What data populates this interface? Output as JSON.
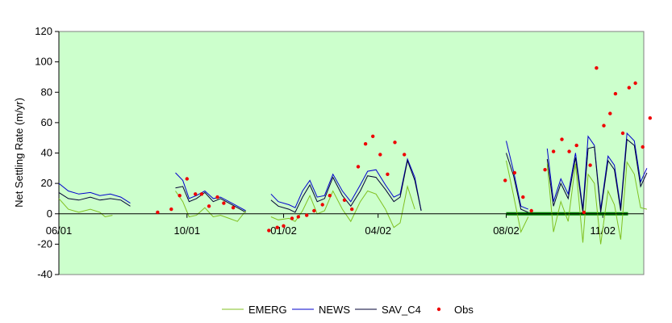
{
  "chart_data": {
    "type": "line",
    "title": "",
    "xlabel": "",
    "ylabel": "Net Settling Rate (m/yr)",
    "ylim": [
      -40,
      120
    ],
    "yticks": [
      -40,
      -20,
      0,
      20,
      40,
      60,
      80,
      100,
      120
    ],
    "xlim": [
      "2001-06-01",
      "2002-12-10"
    ],
    "xticks": [
      {
        "date": "2001-06-01",
        "label": "06/01"
      },
      {
        "date": "2001-10-01",
        "label": "10/01"
      },
      {
        "date": "2002-01-01",
        "label": "01/02"
      },
      {
        "date": "2002-04-01",
        "label": "04/02"
      },
      {
        "date": "2002-08-01",
        "label": "08/02"
      },
      {
        "date": "2002-11-01",
        "label": "11/02"
      }
    ],
    "grid": false,
    "legend_position": "bottom",
    "colors": {
      "plot_bg": "#ccffcc",
      "EMERG": "#80c020",
      "NEWS": "#0000cc",
      "SAV_C4": "#000033",
      "Obs": "#ee0000",
      "bar": "#008000"
    },
    "annotations": [
      {
        "type": "horizontal-bar",
        "x_start": "2002-08-01",
        "x_end": "2002-11-25",
        "y": 0
      }
    ],
    "series": [
      {
        "name": "NEWS",
        "segments": [
          [
            [
              "2001-06-01",
              20
            ],
            [
              "2001-06-10",
              15
            ],
            [
              "2001-06-20",
              13
            ],
            [
              "2001-07-01",
              14
            ],
            [
              "2001-07-10",
              12
            ],
            [
              "2001-07-20",
              13
            ],
            [
              "2001-07-30",
              11
            ],
            [
              "2001-08-08",
              7
            ]
          ],
          [
            [
              "2001-09-20",
              27
            ],
            [
              "2001-09-27",
              22
            ],
            [
              "2001-10-03",
              10
            ],
            [
              "2001-10-10",
              12
            ],
            [
              "2001-10-18",
              15
            ],
            [
              "2001-10-26",
              10
            ],
            [
              "2001-11-02",
              11
            ],
            [
              "2001-11-10",
              8
            ],
            [
              "2001-11-18",
              5
            ],
            [
              "2001-11-26",
              2
            ]
          ],
          [
            [
              "2001-12-20",
              13
            ],
            [
              "2001-12-27",
              8
            ],
            [
              "2002-01-06",
              6
            ],
            [
              "2002-01-12",
              4
            ],
            [
              "2002-01-19",
              15
            ],
            [
              "2002-01-26",
              22
            ],
            [
              "2002-02-02",
              11
            ],
            [
              "2002-02-09",
              12
            ],
            [
              "2002-02-17",
              26
            ],
            [
              "2002-02-26",
              15
            ],
            [
              "2002-03-06",
              8
            ],
            [
              "2002-03-15",
              19
            ],
            [
              "2002-03-22",
              28
            ],
            [
              "2002-03-30",
              29
            ],
            [
              "2002-04-08",
              19
            ],
            [
              "2002-04-16",
              11
            ],
            [
              "2002-04-22",
              13
            ],
            [
              "2002-04-29",
              36
            ],
            [
              "2002-05-06",
              24
            ],
            [
              "2002-05-12",
              2
            ]
          ],
          [
            [
              "2002-08-01",
              48
            ],
            [
              "2002-08-08",
              28
            ],
            [
              "2002-08-15",
              5
            ],
            [
              "2002-08-22",
              3
            ]
          ],
          [
            [
              "2002-09-09",
              43
            ],
            [
              "2002-09-15",
              8
            ],
            [
              "2002-09-22",
              23
            ],
            [
              "2002-09-29",
              13
            ],
            [
              "2002-10-06",
              40
            ],
            [
              "2002-10-13",
              3
            ],
            [
              "2002-10-18",
              51
            ],
            [
              "2002-10-24",
              45
            ],
            [
              "2002-10-30",
              3
            ],
            [
              "2002-11-06",
              38
            ],
            [
              "2002-11-12",
              32
            ],
            [
              "2002-11-18",
              4
            ],
            [
              "2002-11-24",
              53
            ],
            [
              "2002-12-01",
              48
            ],
            [
              "2002-12-07",
              21
            ],
            [
              "2002-12-13",
              30
            ]
          ]
        ]
      },
      {
        "name": "SAV_C4",
        "segments": [
          [
            [
              "2001-06-01",
              14
            ],
            [
              "2001-06-10",
              10
            ],
            [
              "2001-06-20",
              9
            ],
            [
              "2001-07-01",
              11
            ],
            [
              "2001-07-10",
              9
            ],
            [
              "2001-07-20",
              10
            ],
            [
              "2001-07-30",
              9
            ],
            [
              "2001-08-08",
              5
            ]
          ],
          [
            [
              "2001-09-20",
              17
            ],
            [
              "2001-09-27",
              18
            ],
            [
              "2001-10-03",
              8
            ],
            [
              "2001-10-10",
              10
            ],
            [
              "2001-10-18",
              14
            ],
            [
              "2001-10-26",
              8
            ],
            [
              "2001-11-02",
              10
            ],
            [
              "2001-11-10",
              7
            ],
            [
              "2001-11-18",
              4
            ],
            [
              "2001-11-26",
              1
            ]
          ],
          [
            [
              "2001-12-20",
              9
            ],
            [
              "2001-12-27",
              5
            ],
            [
              "2002-01-06",
              3
            ],
            [
              "2002-01-12",
              1
            ],
            [
              "2002-01-19",
              11
            ],
            [
              "2002-01-26",
              19
            ],
            [
              "2002-02-02",
              8
            ],
            [
              "2002-02-09",
              10
            ],
            [
              "2002-02-17",
              24
            ],
            [
              "2002-02-26",
              12
            ],
            [
              "2002-03-06",
              5
            ],
            [
              "2002-03-15",
              15
            ],
            [
              "2002-03-22",
              25
            ],
            [
              "2002-03-30",
              24
            ],
            [
              "2002-04-08",
              16
            ],
            [
              "2002-04-16",
              8
            ],
            [
              "2002-04-22",
              11
            ],
            [
              "2002-04-29",
              35
            ],
            [
              "2002-05-06",
              22
            ],
            [
              "2002-05-12",
              2
            ]
          ],
          [
            [
              "2002-08-01",
              40
            ],
            [
              "2002-08-08",
              25
            ],
            [
              "2002-08-15",
              3
            ],
            [
              "2002-08-22",
              1
            ]
          ],
          [
            [
              "2002-09-09",
              36
            ],
            [
              "2002-09-15",
              5
            ],
            [
              "2002-09-22",
              20
            ],
            [
              "2002-09-29",
              10
            ],
            [
              "2002-10-06",
              37
            ],
            [
              "2002-10-13",
              1
            ],
            [
              "2002-10-18",
              43
            ],
            [
              "2002-10-24",
              44
            ],
            [
              "2002-10-30",
              1
            ],
            [
              "2002-11-06",
              35
            ],
            [
              "2002-11-12",
              29
            ],
            [
              "2002-11-18",
              2
            ],
            [
              "2002-11-24",
              49
            ],
            [
              "2002-12-01",
              45
            ],
            [
              "2002-12-07",
              18
            ],
            [
              "2002-12-13",
              27
            ]
          ]
        ]
      },
      {
        "name": "EMERG",
        "segments": [
          [
            [
              "2001-06-01",
              10
            ],
            [
              "2001-06-10",
              3
            ],
            [
              "2001-06-20",
              1
            ],
            [
              "2001-07-01",
              3
            ],
            [
              "2001-07-10",
              1
            ],
            [
              "2001-07-15",
              -2
            ],
            [
              "2001-07-22",
              -1
            ]
          ],
          [
            [
              "2001-09-20",
              15
            ],
            [
              "2001-09-27",
              8
            ],
            [
              "2001-10-03",
              -2
            ],
            [
              "2001-10-10",
              -1
            ],
            [
              "2001-10-18",
              4
            ],
            [
              "2001-10-26",
              -2
            ],
            [
              "2001-11-02",
              -1
            ],
            [
              "2001-11-10",
              -3
            ],
            [
              "2001-11-18",
              -5
            ],
            [
              "2001-11-26",
              2
            ]
          ],
          [
            [
              "2001-12-20",
              -2
            ],
            [
              "2001-12-27",
              -4
            ],
            [
              "2002-01-06",
              -3
            ],
            [
              "2002-01-12",
              -5
            ],
            [
              "2002-01-19",
              2
            ],
            [
              "2002-01-26",
              12
            ],
            [
              "2002-02-02",
              0
            ],
            [
              "2002-02-09",
              2
            ],
            [
              "2002-02-17",
              15
            ],
            [
              "2002-02-26",
              3
            ],
            [
              "2002-03-06",
              -5
            ],
            [
              "2002-03-15",
              8
            ],
            [
              "2002-03-22",
              15
            ],
            [
              "2002-03-30",
              13
            ],
            [
              "2002-04-08",
              3
            ],
            [
              "2002-04-16",
              -9
            ],
            [
              "2002-04-22",
              -6
            ],
            [
              "2002-04-29",
              18
            ],
            [
              "2002-05-06",
              3
            ]
          ],
          [
            [
              "2002-08-01",
              35
            ],
            [
              "2002-08-08",
              12
            ],
            [
              "2002-08-15",
              -12
            ],
            [
              "2002-08-22",
              -2
            ]
          ],
          [
            [
              "2002-09-09",
              33
            ],
            [
              "2002-09-15",
              -12
            ],
            [
              "2002-09-22",
              8
            ],
            [
              "2002-09-29",
              -5
            ],
            [
              "2002-10-06",
              33
            ],
            [
              "2002-10-13",
              -19
            ],
            [
              "2002-10-18",
              26
            ],
            [
              "2002-10-24",
              20
            ],
            [
              "2002-10-30",
              -20
            ],
            [
              "2002-11-06",
              15
            ],
            [
              "2002-11-12",
              6
            ],
            [
              "2002-11-18",
              -17
            ],
            [
              "2002-11-24",
              34
            ],
            [
              "2002-12-01",
              26
            ],
            [
              "2002-12-07",
              4
            ],
            [
              "2002-12-13",
              3
            ]
          ]
        ]
      },
      {
        "name": "Obs",
        "type": "scatter",
        "points": [
          [
            "2001-09-03",
            1
          ],
          [
            "2001-09-16",
            3
          ],
          [
            "2001-09-24",
            12
          ],
          [
            "2001-10-01",
            23
          ],
          [
            "2001-10-09",
            13
          ],
          [
            "2001-10-15",
            13
          ],
          [
            "2001-10-22",
            5
          ],
          [
            "2001-10-30",
            11
          ],
          [
            "2001-11-05",
            7
          ],
          [
            "2001-11-14",
            4
          ],
          [
            "2001-12-18",
            -11
          ],
          [
            "2001-12-26",
            -9
          ],
          [
            "2002-01-01",
            -8
          ],
          [
            "2002-01-09",
            -3
          ],
          [
            "2002-01-15",
            -2
          ],
          [
            "2002-01-23",
            -1
          ],
          [
            "2002-01-30",
            2
          ],
          [
            "2002-02-07",
            6
          ],
          [
            "2002-02-14",
            12
          ],
          [
            "2002-02-28",
            9
          ],
          [
            "2002-03-07",
            3
          ],
          [
            "2002-03-13",
            31
          ],
          [
            "2002-03-20",
            46
          ],
          [
            "2002-03-27",
            51
          ],
          [
            "2002-04-03",
            39
          ],
          [
            "2002-04-10",
            26
          ],
          [
            "2002-04-17",
            47
          ],
          [
            "2002-04-26",
            39
          ],
          [
            "2002-07-31",
            22
          ],
          [
            "2002-08-09",
            27
          ],
          [
            "2002-08-17",
            11
          ],
          [
            "2002-08-25",
            2
          ],
          [
            "2002-09-07",
            29
          ],
          [
            "2002-09-15",
            41
          ],
          [
            "2002-09-23",
            49
          ],
          [
            "2002-09-30",
            41
          ],
          [
            "2002-10-07",
            45
          ],
          [
            "2002-10-14",
            1
          ],
          [
            "2002-10-20",
            32
          ],
          [
            "2002-10-26",
            96
          ],
          [
            "2002-11-02",
            58
          ],
          [
            "2002-11-08",
            66
          ],
          [
            "2002-11-13",
            79
          ],
          [
            "2002-11-20",
            53
          ],
          [
            "2002-11-26",
            83
          ],
          [
            "2002-12-02",
            86
          ],
          [
            "2002-12-09",
            44
          ],
          [
            "2002-12-16",
            63
          ]
        ]
      }
    ]
  }
}
